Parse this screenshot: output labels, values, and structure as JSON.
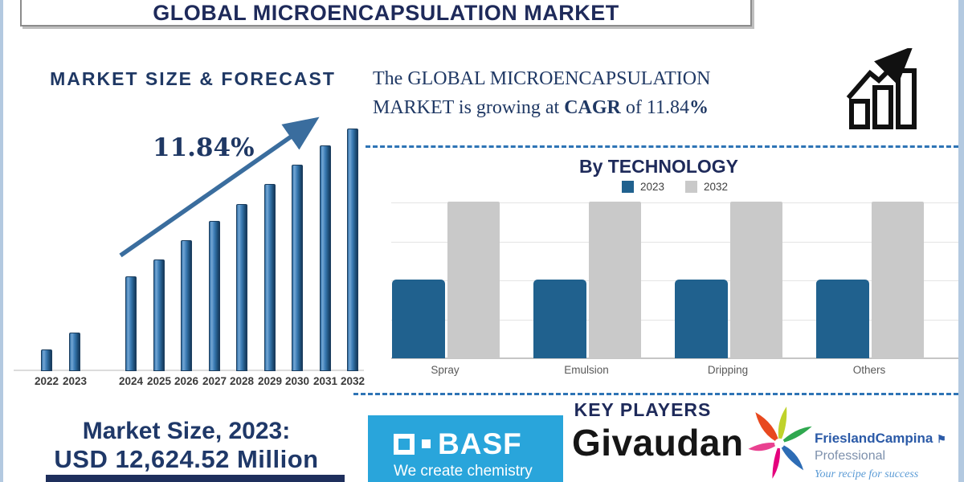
{
  "header": {
    "title": "GLOBAL MICROENCAPSULATION MARKET"
  },
  "forecast_section": {
    "title": "MARKET SIZE & FORECAST",
    "cagr_annotation": "11.84%"
  },
  "summary": {
    "prefix": "The GLOBAL MICROENCAPSULATION MARKET is growing at ",
    "cagr_word": "CAGR",
    "mid": " of ",
    "value": "11.84",
    "percent_sign": "%"
  },
  "technology_section": {
    "title": "By TECHNOLOGY",
    "legend": [
      {
        "label": "2023",
        "color": "#20618E"
      },
      {
        "label": "2032",
        "color": "#C9C9C9"
      }
    ]
  },
  "market_size": {
    "line1": "Market Size, 2023:",
    "line2": "USD 12,624.52 Million"
  },
  "key_players": {
    "title": "KEY PLAYERS",
    "basf": {
      "name": "BASF",
      "tagline": "We create chemistry"
    },
    "givaudan": {
      "name": "Givaudan"
    },
    "frieslandcampina": {
      "name": "FrieslandCampina",
      "division": "Professional",
      "tagline": "Your recipe for success"
    }
  },
  "colors": {
    "navy_title": "#1E2A5A",
    "navy_text": "#1F3864",
    "forecast_bar_blue": "#2E6DA4",
    "arrow_blue": "#3A6D9E",
    "tech_bar_2023": "#20618E",
    "tech_bar_2032": "#C9C9C9",
    "dashed_separator": "#2E74B5",
    "basf_blue": "#29A5DB",
    "frieslandcampina_blue": "#2B5AA7",
    "page_border_blue": "#B3C9E0"
  },
  "chart_data": [
    {
      "type": "bar",
      "title": "MARKET SIZE & FORECAST",
      "categories": [
        "2022",
        "2023",
        "2024",
        "2025",
        "2026",
        "2027",
        "2028",
        "2029",
        "2030",
        "2031",
        "2032"
      ],
      "values_relative_pct": [
        9,
        16,
        39,
        46,
        54,
        62,
        69,
        77,
        85,
        93,
        100
      ],
      "value_note": "no y-axis shown; values are bar heights as % of tallest (2032) bar",
      "known_point": "2023 = USD 12,624.52 Million",
      "annotation": "11.84%",
      "xlabel": "",
      "ylabel": "",
      "grid": false,
      "legend": false
    },
    {
      "type": "bar",
      "title": "By TECHNOLOGY",
      "categories": [
        "Spray",
        "Emulsion",
        "Dripping",
        "Others"
      ],
      "series": [
        {
          "name": "2023",
          "color": "#20618E",
          "values_relative_pct": [
            50,
            50,
            50,
            50
          ]
        },
        {
          "name": "2032",
          "color": "#C9C9C9",
          "values_relative_pct": [
            100,
            100,
            100,
            100
          ]
        }
      ],
      "value_note": "no y-axis shown; values are bar heights as % of plot height",
      "grid": true,
      "legend_position": "top"
    }
  ]
}
